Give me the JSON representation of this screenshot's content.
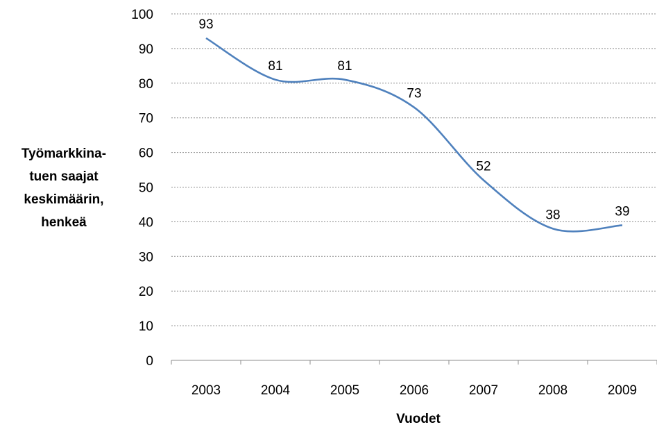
{
  "chart_data": {
    "type": "line",
    "categories": [
      "2003",
      "2004",
      "2005",
      "2006",
      "2007",
      "2008",
      "2009"
    ],
    "series": [
      {
        "values": [
          93,
          81,
          81,
          73,
          52,
          38,
          39
        ]
      }
    ],
    "data_labels": [
      "93",
      "81",
      "81",
      "73",
      "52",
      "38",
      "39"
    ],
    "xlabel": "Vuodet",
    "ylabel": [
      "Työmarkkina-",
      "tuen saajat",
      "keskimäärin,",
      "henkeä"
    ],
    "ylim": [
      0,
      100
    ],
    "yticks": [
      0,
      10,
      20,
      30,
      40,
      50,
      60,
      70,
      80,
      90,
      100
    ],
    "grid": true,
    "smooth": true,
    "line_color": "#4f81bd"
  }
}
